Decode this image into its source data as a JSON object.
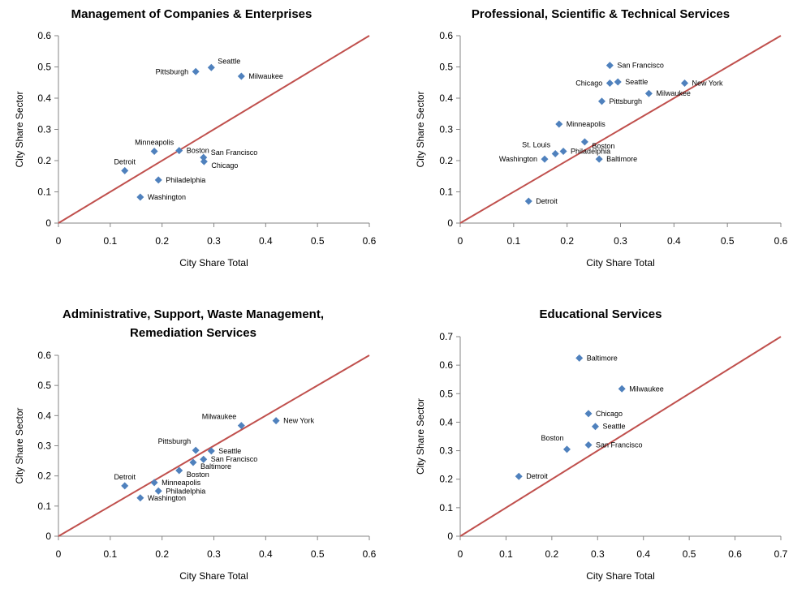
{
  "colors": {
    "marker": "#4F81BD",
    "diagonal": "#C0504D",
    "axis": "#868686"
  },
  "chart_data": [
    {
      "type": "scatter",
      "title": [
        "Management of Companies & Enterprises"
      ],
      "xlabel": "City Share Total",
      "ylabel": "City Share Sector",
      "xlim": [
        0,
        0.6
      ],
      "ylim": [
        0,
        0.6
      ],
      "xticks": [
        "0",
        "0.1",
        "0.2",
        "0.3",
        "0.4",
        "0.5",
        "0.6"
      ],
      "yticks": [
        "0",
        "0.1",
        "0.2",
        "0.3",
        "0.4",
        "0.5",
        "0.6"
      ],
      "diagonal": [
        [
          0,
          0
        ],
        [
          0.6,
          0.6
        ]
      ],
      "points": [
        {
          "label": "Pittsburgh",
          "x": 0.265,
          "y": 0.485,
          "pos": "left"
        },
        {
          "label": "Seattle",
          "x": 0.295,
          "y": 0.498,
          "pos": "above-right"
        },
        {
          "label": "Milwaukee",
          "x": 0.353,
          "y": 0.47,
          "pos": "right"
        },
        {
          "label": "Minneapolis",
          "x": 0.185,
          "y": 0.23,
          "pos": "above"
        },
        {
          "label": "Boston",
          "x": 0.233,
          "y": 0.232,
          "pos": "right"
        },
        {
          "label": "San Francisco",
          "x": 0.28,
          "y": 0.21,
          "pos": "right-up"
        },
        {
          "label": "Chicago",
          "x": 0.281,
          "y": 0.197,
          "pos": "right-down"
        },
        {
          "label": "Detroit",
          "x": 0.128,
          "y": 0.168,
          "pos": "above"
        },
        {
          "label": "Philadelphia",
          "x": 0.193,
          "y": 0.138,
          "pos": "right"
        },
        {
          "label": "Washington",
          "x": 0.158,
          "y": 0.083,
          "pos": "right"
        }
      ]
    },
    {
      "type": "scatter",
      "title": [
        "Professional, Scientific & Technical Services"
      ],
      "xlabel": "City Share Total",
      "ylabel": "City Share Sector",
      "xlim": [
        0,
        0.6
      ],
      "ylim": [
        0,
        0.6
      ],
      "xticks": [
        "0",
        "0.1",
        "0.2",
        "0.3",
        "0.4",
        "0.5",
        "0.6"
      ],
      "yticks": [
        "0",
        "0.1",
        "0.2",
        "0.3",
        "0.4",
        "0.5",
        "0.6"
      ],
      "diagonal": [
        [
          0,
          0
        ],
        [
          0.6,
          0.6
        ]
      ],
      "points": [
        {
          "label": "San Francisco",
          "x": 0.28,
          "y": 0.505,
          "pos": "right"
        },
        {
          "label": "Chicago",
          "x": 0.28,
          "y": 0.448,
          "pos": "left"
        },
        {
          "label": "Seattle",
          "x": 0.295,
          "y": 0.452,
          "pos": "right"
        },
        {
          "label": "New York",
          "x": 0.42,
          "y": 0.448,
          "pos": "right"
        },
        {
          "label": "Milwaukee",
          "x": 0.353,
          "y": 0.415,
          "pos": "right"
        },
        {
          "label": "Pittsburgh",
          "x": 0.265,
          "y": 0.39,
          "pos": "right"
        },
        {
          "label": "Minneapolis",
          "x": 0.185,
          "y": 0.317,
          "pos": "right"
        },
        {
          "label": "Boston",
          "x": 0.233,
          "y": 0.26,
          "pos": "right-down"
        },
        {
          "label": "St. Louis",
          "x": 0.178,
          "y": 0.222,
          "pos": "left-up"
        },
        {
          "label": "Philadelphia",
          "x": 0.193,
          "y": 0.23,
          "pos": "right"
        },
        {
          "label": "Washington",
          "x": 0.158,
          "y": 0.205,
          "pos": "left"
        },
        {
          "label": "Baltimore",
          "x": 0.26,
          "y": 0.205,
          "pos": "right"
        },
        {
          "label": "Detroit",
          "x": 0.128,
          "y": 0.07,
          "pos": "right"
        }
      ]
    },
    {
      "type": "scatter",
      "title": [
        "Administrative, Support, Waste Management,",
        "Remediation Services"
      ],
      "xlabel": "City Share Total",
      "ylabel": "City Share Sector",
      "xlim": [
        0,
        0.6
      ],
      "ylim": [
        0,
        0.6
      ],
      "xticks": [
        "0",
        "0.1",
        "0.2",
        "0.3",
        "0.4",
        "0.5",
        "0.6"
      ],
      "yticks": [
        "0",
        "0.1",
        "0.2",
        "0.3",
        "0.4",
        "0.5",
        "0.6"
      ],
      "diagonal": [
        [
          0,
          0
        ],
        [
          0.6,
          0.6
        ]
      ],
      "points": [
        {
          "label": "Milwaukee",
          "x": 0.353,
          "y": 0.367,
          "pos": "left-up"
        },
        {
          "label": "New York",
          "x": 0.42,
          "y": 0.383,
          "pos": "right"
        },
        {
          "label": "Pittsburgh",
          "x": 0.265,
          "y": 0.285,
          "pos": "left-up"
        },
        {
          "label": "Seattle",
          "x": 0.295,
          "y": 0.283,
          "pos": "right"
        },
        {
          "label": "San Francisco",
          "x": 0.28,
          "y": 0.255,
          "pos": "right"
        },
        {
          "label": "Baltimore",
          "x": 0.26,
          "y": 0.245,
          "pos": "right-down"
        },
        {
          "label": "Boston",
          "x": 0.233,
          "y": 0.218,
          "pos": "right-down"
        },
        {
          "label": "Detroit",
          "x": 0.128,
          "y": 0.167,
          "pos": "above"
        },
        {
          "label": "Minneapolis",
          "x": 0.185,
          "y": 0.178,
          "pos": "right"
        },
        {
          "label": "Philadelphia",
          "x": 0.193,
          "y": 0.15,
          "pos": "right"
        },
        {
          "label": "Washington",
          "x": 0.158,
          "y": 0.127,
          "pos": "right"
        }
      ]
    },
    {
      "type": "scatter",
      "title": [
        "Educational Services"
      ],
      "xlabel": "City Share Total",
      "ylabel": "City Share Sector",
      "xlim": [
        0,
        0.7
      ],
      "ylim": [
        0,
        0.7
      ],
      "xticks": [
        "0",
        "0.1",
        "0.2",
        "0.3",
        "0.4",
        "0.5",
        "0.6",
        "0.7"
      ],
      "yticks": [
        "0",
        "0.1",
        "0.2",
        "0.3",
        "0.4",
        "0.5",
        "0.6",
        "0.7"
      ],
      "diagonal": [
        [
          0,
          0
        ],
        [
          0.7,
          0.7
        ]
      ],
      "points": [
        {
          "label": "Baltimore",
          "x": 0.26,
          "y": 0.625,
          "pos": "right"
        },
        {
          "label": "Milwaukee",
          "x": 0.353,
          "y": 0.517,
          "pos": "right"
        },
        {
          "label": "Chicago",
          "x": 0.28,
          "y": 0.43,
          "pos": "right"
        },
        {
          "label": "Seattle",
          "x": 0.295,
          "y": 0.385,
          "pos": "right"
        },
        {
          "label": "Boston",
          "x": 0.233,
          "y": 0.305,
          "pos": "above-left"
        },
        {
          "label": "San Francisco",
          "x": 0.28,
          "y": 0.32,
          "pos": "right"
        },
        {
          "label": "Detroit",
          "x": 0.128,
          "y": 0.21,
          "pos": "right"
        }
      ]
    }
  ]
}
